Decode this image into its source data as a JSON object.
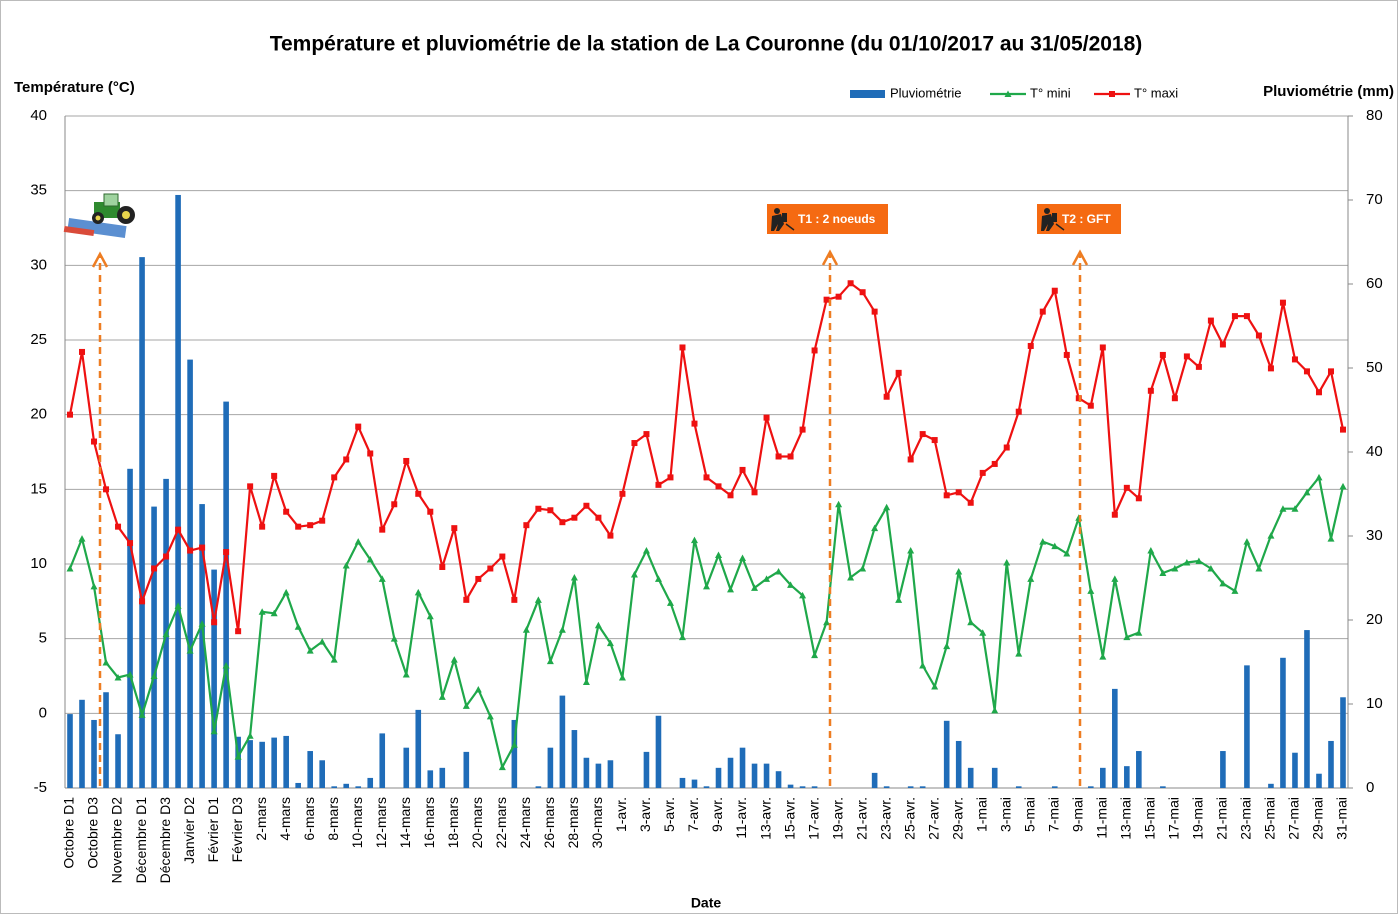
{
  "chart_data": {
    "type": "combo",
    "title": "Température et pluviométrie de la station de La Couronne (du 01/10/2017 au 31/05/2018)",
    "y_label": "Température (°C)",
    "y2_label": "Pluviométrie (mm)",
    "x_label": "Date",
    "annotations": [
      "T1 : 2 noeuds",
      "T2 : GFT"
    ],
    "legend": "top-right",
    "grid": true,
    "ylim": [
      -5,
      40
    ],
    "yticks": [
      -5,
      0,
      5,
      10,
      15,
      20,
      25,
      30,
      35,
      40
    ],
    "y2lim": [
      0,
      80
    ],
    "y2ticks": [
      0,
      10,
      20,
      30,
      40,
      50,
      60,
      70,
      80
    ],
    "categories": [
      "Octobre D1",
      null,
      "Octobre D3",
      null,
      "Novembre D2",
      null,
      "Décembre D1",
      null,
      "Décembre D3",
      null,
      "Janvier D2",
      null,
      "Février D1",
      null,
      "Février D3",
      null,
      "2-mars",
      null,
      "4-mars",
      null,
      "6-mars",
      null,
      "8-mars",
      null,
      "10-mars",
      null,
      "12-mars",
      null,
      "14-mars",
      null,
      "16-mars",
      null,
      "18-mars",
      null,
      "20-mars",
      null,
      "22-mars",
      null,
      "24-mars",
      null,
      "26-mars",
      null,
      "28-mars",
      null,
      "30-mars",
      null,
      "1-avr.",
      null,
      "3-avr.",
      null,
      "5-avr.",
      null,
      "7-avr.",
      null,
      "9-avr.",
      null,
      "11-avr.",
      null,
      "13-avr.",
      null,
      "15-avr.",
      null,
      "17-avr.",
      null,
      "19-avr.",
      null,
      "21-avr.",
      null,
      "23-avr.",
      null,
      "25-avr.",
      null,
      "27-avr.",
      null,
      "29-avr.",
      null,
      "1-mai",
      null,
      "3-mai",
      null,
      "5-mai",
      null,
      "7-mai",
      null,
      "9-mai",
      null,
      "11-mai",
      null,
      "13-mai",
      null,
      "15-mai",
      null,
      "17-mai",
      null,
      "19-mai",
      null,
      "21-mai",
      null,
      "23-mai",
      null,
      "25-mai",
      null,
      "27-mai",
      null,
      "29-mai",
      null,
      "31-mai"
    ],
    "series": [
      {
        "name": "Pluviométrie",
        "type": "bar",
        "axis": "y2",
        "color": "#1f6cb8",
        "values": [
          8.8,
          10.5,
          8.1,
          11.4,
          6.4,
          38.0,
          63.2,
          33.5,
          36.8,
          70.6,
          51.0,
          33.8,
          26.0,
          46.0,
          6.1,
          5.7,
          5.5,
          6.0,
          6.2,
          0.6,
          4.4,
          3.3,
          0.2,
          0.5,
          0.2,
          1.2,
          6.5,
          0,
          4.8,
          9.3,
          2.1,
          2.4,
          0,
          4.3,
          0,
          0,
          0,
          8.1,
          0,
          0.2,
          4.8,
          11.0,
          6.9,
          3.6,
          2.9,
          3.3,
          0,
          0,
          4.3,
          8.6,
          0,
          1.2,
          1.0,
          0.2,
          2.4,
          3.6,
          4.8,
          2.9,
          2.9,
          2.0,
          0.4,
          0.2,
          0.2,
          0,
          0,
          0,
          0,
          1.8,
          0.2,
          0,
          0.2,
          0.2,
          0,
          8.0,
          5.6,
          2.4,
          0,
          2.4,
          0,
          0.2,
          0,
          0,
          0.2,
          0,
          0,
          0.2,
          2.4,
          11.8,
          2.6,
          4.4,
          0,
          0.2,
          0,
          0,
          0,
          0,
          4.4,
          0,
          14.6,
          0,
          0.5,
          15.5,
          4.2,
          18.8,
          1.7,
          5.6,
          10.8
        ]
      },
      {
        "name": "T° mini",
        "type": "line",
        "marker": "triangle",
        "color": "#1fa84a",
        "values": [
          9.7,
          11.7,
          8.5,
          3.4,
          2.4,
          2.6,
          -0.1,
          2.5,
          5.3,
          7.2,
          4.2,
          6.0,
          -1.2,
          3.2,
          -2.9,
          -1.5,
          6.8,
          6.7,
          8.1,
          5.8,
          4.2,
          4.8,
          3.6,
          9.9,
          11.5,
          10.3,
          9.0,
          5.0,
          2.6,
          8.1,
          6.5,
          1.1,
          3.6,
          0.5,
          1.6,
          -0.2,
          -3.6,
          -2.1,
          5.6,
          7.6,
          3.5,
          5.6,
          9.1,
          2.1,
          5.9,
          4.7,
          2.4,
          9.3,
          10.9,
          9.0,
          7.4,
          5.1,
          11.6,
          8.5,
          10.6,
          8.3,
          10.4,
          8.4,
          9.0,
          9.5,
          8.6,
          7.9,
          3.9,
          6.1,
          14.0,
          9.1,
          9.7,
          12.4,
          13.8,
          7.6,
          10.9,
          3.2,
          1.8,
          4.5,
          9.5,
          6.1,
          5.4,
          0.2,
          10.1,
          4.0,
          9.0,
          11.5,
          11.2,
          10.7,
          13.1,
          8.2,
          3.8,
          9.0,
          5.1,
          5.4,
          10.9,
          9.4,
          9.7,
          10.1,
          10.2,
          9.7,
          8.7,
          8.2,
          11.5,
          9.7,
          11.9,
          13.7,
          13.7,
          14.8,
          15.8,
          11.7,
          15.2
        ]
      },
      {
        "name": "T° maxi",
        "type": "line",
        "marker": "square",
        "color": "#ee1111",
        "values": [
          20.0,
          24.2,
          18.2,
          15.0,
          12.5,
          11.4,
          7.5,
          9.7,
          10.5,
          12.3,
          10.9,
          11.1,
          6.1,
          10.8,
          5.5,
          15.2,
          12.5,
          15.9,
          13.5,
          12.5,
          12.6,
          12.9,
          15.8,
          17.0,
          19.2,
          17.4,
          12.3,
          14.0,
          16.9,
          14.7,
          13.5,
          9.8,
          12.4,
          7.6,
          9.0,
          9.7,
          10.5,
          7.6,
          12.6,
          13.7,
          13.6,
          12.8,
          13.1,
          13.9,
          13.1,
          11.9,
          14.7,
          18.1,
          18.7,
          15.3,
          15.8,
          24.5,
          19.4,
          15.8,
          15.2,
          14.6,
          16.3,
          14.8,
          19.8,
          17.2,
          17.2,
          19.0,
          24.3,
          27.7,
          27.9,
          28.8,
          28.2,
          26.9,
          21.2,
          22.8,
          17.0,
          18.7,
          18.3,
          14.6,
          14.8,
          14.1,
          16.1,
          16.7,
          17.8,
          20.2,
          24.6,
          26.9,
          28.3,
          24.0,
          21.1,
          20.6,
          24.5,
          13.3,
          15.1,
          14.4,
          21.6,
          24.0,
          21.1,
          23.9,
          23.2,
          26.3,
          24.7,
          26.6,
          26.6,
          25.3,
          23.1,
          27.5,
          23.7,
          22.9,
          21.5,
          22.9,
          19.0
        ]
      }
    ]
  }
}
